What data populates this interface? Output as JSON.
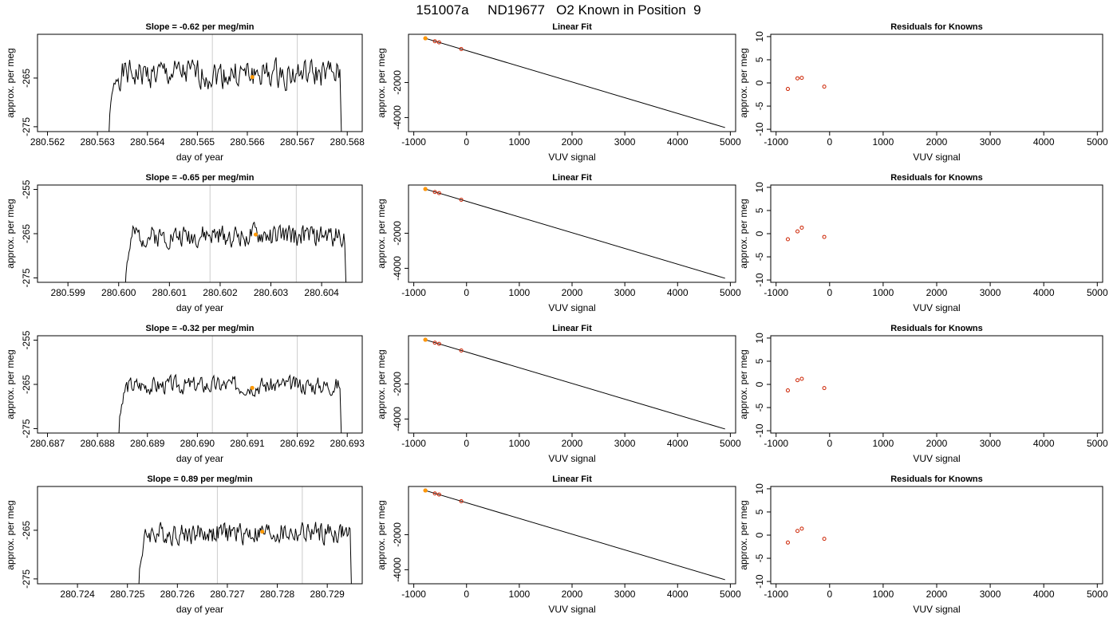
{
  "page_title": "151007a     ND19677   O2 Known in Position  9",
  "colors": {
    "line": "#000000",
    "marker": "#ff9900",
    "residual": "#cc2200",
    "vline": "#cccccc"
  },
  "chart_data": [
    {
      "row": 1,
      "type": "line",
      "title": "Slope =  -0.62  per meg/min",
      "xlabel": "day of year",
      "ylabel": "approx. per meg",
      "xlim": [
        280.5618,
        280.5683
      ],
      "ylim": [
        -276,
        -256
      ],
      "xticks": [
        280.562,
        280.563,
        280.564,
        280.565,
        280.566,
        280.567,
        280.568
      ],
      "xtick_labels": [
        "280.562",
        "280.563",
        "280.564",
        "280.565",
        "280.566",
        "280.567",
        "280.568"
      ],
      "yticks": [
        -265,
        -275
      ],
      "ytick_labels": [
        "-265",
        "-275"
      ],
      "vlines": [
        280.5653,
        280.567
      ],
      "marker": {
        "x": 280.5661,
        "y": -264.8
      },
      "series": [
        {
          "x_start": 280.5632,
          "x_end": 280.5679,
          "drop_at_end": true,
          "seed": 1,
          "level": -264.2,
          "noise": 2.6
        }
      ]
    },
    {
      "row": 1,
      "type": "scatter",
      "title": "Linear Fit",
      "xlabel": "VUV signal",
      "ylabel": "approx. per meg",
      "xlim": [
        -1100,
        5100
      ],
      "ylim": [
        -4800,
        750
      ],
      "xticks": [
        -1000,
        0,
        1000,
        2000,
        3000,
        4000,
        5000
      ],
      "xtick_labels": [
        "-1000",
        "0",
        "1000",
        "2000",
        "3000",
        "4000",
        "5000"
      ],
      "yticks": [
        -2000,
        -4000
      ],
      "ytick_labels": [
        "-2000",
        "-4000"
      ],
      "fit_line": {
        "x": [
          -780,
          4900
        ],
        "y": [
          520,
          -4570
        ]
      },
      "points": [
        {
          "x": -780,
          "y": 520
        },
        {
          "x": -600,
          "y": 350
        },
        {
          "x": -520,
          "y": 290
        },
        {
          "x": -100,
          "y": -90
        }
      ],
      "highlight_point": {
        "x": -780,
        "y": 520
      }
    },
    {
      "row": 1,
      "type": "scatter",
      "title": "Residuals for Knowns",
      "xlabel": "VUV signal",
      "ylabel": "approx. per meg",
      "xlim": [
        -1100,
        5100
      ],
      "ylim": [
        -10.5,
        10.5
      ],
      "xticks": [
        -1000,
        0,
        1000,
        2000,
        3000,
        4000,
        5000
      ],
      "xtick_labels": [
        "-1000",
        "0",
        "1000",
        "2000",
        "3000",
        "4000",
        "5000"
      ],
      "yticks": [
        10,
        5,
        0,
        -5,
        -10
      ],
      "ytick_labels": [
        "10",
        "5",
        "0",
        "-5",
        "-10"
      ],
      "points": [
        {
          "x": -780,
          "y": -1.3
        },
        {
          "x": -600,
          "y": 1.0
        },
        {
          "x": -520,
          "y": 1.1
        },
        {
          "x": -100,
          "y": -0.8
        }
      ]
    },
    {
      "row": 2,
      "type": "line",
      "title": "Slope =  -0.65  per meg/min",
      "xlabel": "day of year",
      "ylabel": "approx. per meg",
      "xlim": [
        280.5984,
        280.6048
      ],
      "ylim": [
        -276,
        -254
      ],
      "xticks": [
        280.599,
        280.6,
        280.601,
        280.602,
        280.603,
        280.604
      ],
      "xtick_labels": [
        "280.599",
        "280.600",
        "280.601",
        "280.602",
        "280.603",
        "280.604"
      ],
      "yticks": [
        -255,
        -265,
        -275
      ],
      "ytick_labels": [
        "-255",
        "-265",
        "-275"
      ],
      "vlines": [
        280.6018,
        280.6035
      ],
      "marker": {
        "x": 280.6027,
        "y": -265.2
      },
      "series": [
        {
          "x_start": 280.6001,
          "x_end": 280.6045,
          "drop_at_end": true,
          "seed": 2,
          "level": -265.5,
          "noise": 2.2
        }
      ]
    },
    {
      "row": 2,
      "type": "scatter",
      "title": "Linear Fit",
      "xlabel": "VUV signal",
      "ylabel": "approx. per meg",
      "xlim": [
        -1100,
        5100
      ],
      "ylim": [
        -4800,
        750
      ],
      "xticks": [
        -1000,
        0,
        1000,
        2000,
        3000,
        4000,
        5000
      ],
      "xtick_labels": [
        "-1000",
        "0",
        "1000",
        "2000",
        "3000",
        "4000",
        "5000"
      ],
      "yticks": [
        -2000,
        -4000
      ],
      "ytick_labels": [
        "-2000",
        "-4000"
      ],
      "fit_line": {
        "x": [
          -780,
          4900
        ],
        "y": [
          520,
          -4570
        ]
      },
      "points": [
        {
          "x": -780,
          "y": 520
        },
        {
          "x": -600,
          "y": 350
        },
        {
          "x": -520,
          "y": 290
        },
        {
          "x": -100,
          "y": -90
        }
      ],
      "highlight_point": {
        "x": -780,
        "y": 520
      }
    },
    {
      "row": 2,
      "type": "scatter",
      "title": "Residuals for Knowns",
      "xlabel": "VUV signal",
      "ylabel": "approx. per meg",
      "xlim": [
        -1100,
        5100
      ],
      "ylim": [
        -10.5,
        10.5
      ],
      "xticks": [
        -1000,
        0,
        1000,
        2000,
        3000,
        4000,
        5000
      ],
      "xtick_labels": [
        "-1000",
        "0",
        "1000",
        "2000",
        "3000",
        "4000",
        "5000"
      ],
      "yticks": [
        10,
        5,
        0,
        -5,
        -10
      ],
      "ytick_labels": [
        "10",
        "5",
        "0",
        "-5",
        "-10"
      ],
      "points": [
        {
          "x": -780,
          "y": -1.2
        },
        {
          "x": -600,
          "y": 0.5
        },
        {
          "x": -520,
          "y": 1.3
        },
        {
          "x": -100,
          "y": -0.7
        }
      ]
    },
    {
      "row": 3,
      "type": "line",
      "title": "Slope =  -0.32  per meg/min",
      "xlabel": "day of year",
      "ylabel": "approx. per meg",
      "xlim": [
        280.6868,
        280.6933
      ],
      "ylim": [
        -276,
        -254
      ],
      "xticks": [
        280.687,
        280.688,
        280.689,
        280.69,
        280.691,
        280.692,
        280.693
      ],
      "xtick_labels": [
        "280.687",
        "280.688",
        "280.689",
        "280.690",
        "280.691",
        "280.692",
        "280.693"
      ],
      "yticks": [
        -255,
        -265,
        -275
      ],
      "ytick_labels": [
        "-255",
        "-265",
        "-275"
      ],
      "vlines": [
        280.6903,
        280.692
      ],
      "marker": {
        "x": 280.6911,
        "y": -265.8
      },
      "series": [
        {
          "x_start": 280.6884,
          "x_end": 280.6929,
          "drop_at_end": true,
          "seed": 3,
          "level": -265.2,
          "noise": 1.8
        }
      ]
    },
    {
      "row": 3,
      "type": "scatter",
      "title": "Linear Fit",
      "xlabel": "VUV signal",
      "ylabel": "approx. per meg",
      "xlim": [
        -1100,
        5100
      ],
      "ylim": [
        -4800,
        750
      ],
      "xticks": [
        -1000,
        0,
        1000,
        2000,
        3000,
        4000,
        5000
      ],
      "xtick_labels": [
        "-1000",
        "0",
        "1000",
        "2000",
        "3000",
        "4000",
        "5000"
      ],
      "yticks": [
        -2000,
        -4000
      ],
      "ytick_labels": [
        "-2000",
        "-4000"
      ],
      "fit_line": {
        "x": [
          -780,
          4900
        ],
        "y": [
          520,
          -4570
        ]
      },
      "points": [
        {
          "x": -780,
          "y": 520
        },
        {
          "x": -600,
          "y": 350
        },
        {
          "x": -520,
          "y": 290
        },
        {
          "x": -100,
          "y": -90
        }
      ],
      "highlight_point": {
        "x": -780,
        "y": 520
      }
    },
    {
      "row": 3,
      "type": "scatter",
      "title": "Residuals for Knowns",
      "xlabel": "VUV signal",
      "ylabel": "approx. per meg",
      "xlim": [
        -1100,
        5100
      ],
      "ylim": [
        -10.5,
        10.5
      ],
      "xticks": [
        -1000,
        0,
        1000,
        2000,
        3000,
        4000,
        5000
      ],
      "xtick_labels": [
        "-1000",
        "0",
        "1000",
        "2000",
        "3000",
        "4000",
        "5000"
      ],
      "yticks": [
        10,
        5,
        0,
        -5,
        -10
      ],
      "ytick_labels": [
        "10",
        "5",
        "0",
        "-5",
        "-10"
      ],
      "points": [
        {
          "x": -780,
          "y": -1.3
        },
        {
          "x": -600,
          "y": 0.9
        },
        {
          "x": -520,
          "y": 1.2
        },
        {
          "x": -100,
          "y": -0.8
        }
      ]
    },
    {
      "row": 4,
      "type": "line",
      "title": "Slope =  0.89  per meg/min",
      "xlabel": "day of year",
      "ylabel": "approx. per meg",
      "xlim": [
        280.7232,
        280.7297
      ],
      "ylim": [
        -276,
        -256
      ],
      "xticks": [
        280.724,
        280.725,
        280.726,
        280.727,
        280.728,
        280.729
      ],
      "xtick_labels": [
        "280.724",
        "280.725",
        "280.726",
        "280.727",
        "280.728",
        "280.729"
      ],
      "yticks": [
        -265,
        -275
      ],
      "ytick_labels": [
        "-265",
        "-275"
      ],
      "vlines": [
        280.7268,
        280.7285
      ],
      "marker": {
        "x": 280.7277,
        "y": -265.3
      },
      "series": [
        {
          "x_start": 280.7252,
          "x_end": 280.7295,
          "drop_at_end": true,
          "seed": 4,
          "level": -265.6,
          "noise": 2.0
        }
      ]
    },
    {
      "row": 4,
      "type": "scatter",
      "title": "Linear Fit",
      "xlabel": "VUV signal",
      "ylabel": "approx. per meg",
      "xlim": [
        -1100,
        5100
      ],
      "ylim": [
        -4800,
        750
      ],
      "xticks": [
        -1000,
        0,
        1000,
        2000,
        3000,
        4000,
        5000
      ],
      "xtick_labels": [
        "-1000",
        "0",
        "1000",
        "2000",
        "3000",
        "4000",
        "5000"
      ],
      "yticks": [
        -2000,
        -4000
      ],
      "ytick_labels": [
        "-2000",
        "-4000"
      ],
      "fit_line": {
        "x": [
          -780,
          4900
        ],
        "y": [
          520,
          -4570
        ]
      },
      "points": [
        {
          "x": -780,
          "y": 520
        },
        {
          "x": -600,
          "y": 350
        },
        {
          "x": -520,
          "y": 290
        },
        {
          "x": -100,
          "y": -90
        }
      ],
      "highlight_point": {
        "x": -780,
        "y": 520
      }
    },
    {
      "row": 4,
      "type": "scatter",
      "title": "Residuals for Knowns",
      "xlabel": "VUV signal",
      "ylabel": "approx. per meg",
      "xlim": [
        -1100,
        5100
      ],
      "ylim": [
        -10.5,
        10.5
      ],
      "xticks": [
        -1000,
        0,
        1000,
        2000,
        3000,
        4000,
        5000
      ],
      "xtick_labels": [
        "-1000",
        "0",
        "1000",
        "2000",
        "3000",
        "4000",
        "5000"
      ],
      "yticks": [
        10,
        5,
        0,
        -5,
        -10
      ],
      "ytick_labels": [
        "10",
        "5",
        "0",
        "-5",
        "-10"
      ],
      "points": [
        {
          "x": -780,
          "y": -1.6
        },
        {
          "x": -600,
          "y": 0.9
        },
        {
          "x": -520,
          "y": 1.4
        },
        {
          "x": -100,
          "y": -0.8
        }
      ]
    }
  ]
}
